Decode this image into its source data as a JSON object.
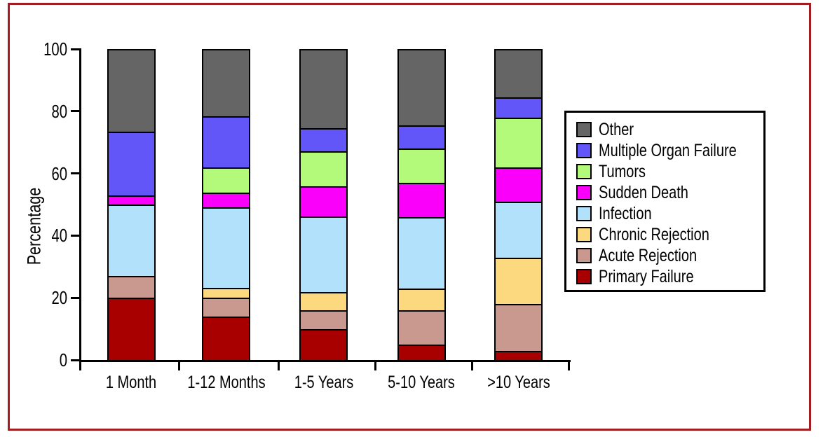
{
  "figure": {
    "frame_color": "#A21D22",
    "background_color": "#FFFFFF",
    "axis_color": "#000000"
  },
  "chart_data": {
    "type": "bar",
    "stacked": true,
    "title": "",
    "xlabel": "",
    "ylabel": "Percentage",
    "ylim": [
      0,
      100
    ],
    "y_ticks": [
      "0",
      "20",
      "40",
      "60",
      "80",
      "100"
    ],
    "grid": "off",
    "legend_position": "right",
    "categories": [
      "1 Month",
      "1-12 Months",
      "1-5 Years",
      "5-10 Years",
      ">10 Years"
    ],
    "series": [
      {
        "name": "Primary Failure",
        "color": "#A80000",
        "values": [
          20,
          14,
          10,
          5,
          3
        ]
      },
      {
        "name": "Acute Rejection",
        "color": "#C9998F",
        "values": [
          7,
          6,
          6,
          11,
          15
        ]
      },
      {
        "name": "Chronic Rejection",
        "color": "#FCD87E",
        "values": [
          0,
          3,
          6,
          7,
          15
        ]
      },
      {
        "name": "Infection",
        "color": "#B2E2FB",
        "values": [
          23,
          26,
          24,
          23,
          18
        ]
      },
      {
        "name": "Sudden Death",
        "color": "#FA00FA",
        "values": [
          3,
          5,
          10,
          11,
          11
        ]
      },
      {
        "name": "Tumors",
        "color": "#B4FA7A",
        "values": [
          0,
          8,
          11,
          11,
          16
        ]
      },
      {
        "name": "Multiple Organ Failure",
        "color": "#6356F8",
        "values": [
          20,
          16,
          7,
          7,
          6
        ]
      },
      {
        "name": "Other",
        "color": "#656565",
        "values": [
          27,
          22,
          26,
          25,
          16
        ]
      }
    ],
    "legend": {
      "items": [
        {
          "label": "Other",
          "color": "#656565"
        },
        {
          "label": "Multiple Organ Failure",
          "color": "#6356F8"
        },
        {
          "label": "Tumors",
          "color": "#B4FA7A"
        },
        {
          "label": "Sudden Death",
          "color": "#FA00FA"
        },
        {
          "label": "Infection",
          "color": "#B2E2FB"
        },
        {
          "label": "Chronic Rejection",
          "color": "#FCD87E"
        },
        {
          "label": "Acute Rejection",
          "color": "#C9998F"
        },
        {
          "label": "Primary Failure",
          "color": "#A80000"
        }
      ]
    }
  }
}
